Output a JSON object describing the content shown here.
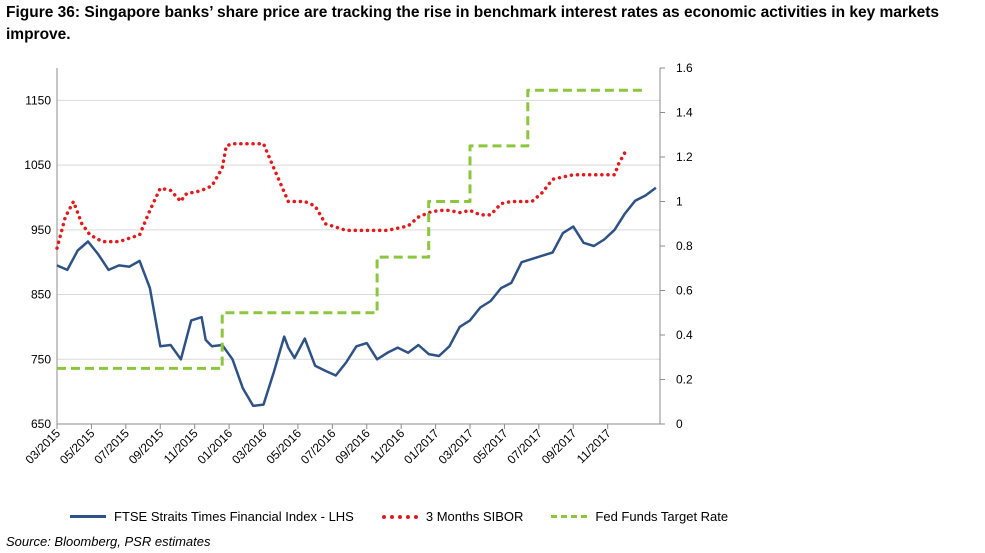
{
  "title": "Figure 36: Singapore banks’ share price are tracking the rise in benchmark interest rates as economic activities in key markets improve.",
  "source": "Source: Bloomberg, PSR estimates",
  "chart_data": {
    "type": "line",
    "x_axis": {
      "kind": "time",
      "range": [
        "2015-03",
        "2017-12"
      ],
      "tick_labels": [
        "03/2015",
        "05/2015",
        "07/2015",
        "09/2015",
        "11/2015",
        "01/2016",
        "03/2016",
        "05/2016",
        "07/2016",
        "09/2016",
        "11/2016",
        "01/2017",
        "03/2017",
        "05/2017",
        "07/2017",
        "09/2017",
        "11/2017"
      ],
      "label_rotation": -45
    },
    "y_left": {
      "ylim": [
        650,
        1200
      ],
      "tick_labels": [
        "650",
        "750",
        "850",
        "950",
        "1050",
        "1150"
      ]
    },
    "y_right": {
      "ylim": [
        0,
        1.6
      ],
      "tick_labels": [
        "0",
        "0.2",
        "0.4",
        "0.6",
        "0.8",
        "1",
        "1.2",
        "1.4",
        "1.6"
      ]
    },
    "grid": "horizontal",
    "legend_position": "bottom",
    "colors": {
      "ftse": "#2e5285",
      "sibor": "#e31a1c",
      "fed": "#8cc63f",
      "grid": "#d9d9d9",
      "axis": "#8c8c8c"
    },
    "series": [
      {
        "name": "FTSE Straits Times Financial Index - LHS",
        "axis": "left",
        "style": "solid",
        "x": [
          2015.0,
          2015.05,
          2015.1,
          2015.15,
          2015.2,
          2015.25,
          2015.3,
          2015.35,
          2015.4,
          2015.45,
          2015.5,
          2015.55,
          2015.6,
          2015.65,
          2015.7,
          2015.72,
          2015.75,
          2015.8,
          2015.85,
          2015.9,
          2015.95,
          2016.0,
          2016.05,
          2016.1,
          2016.12,
          2016.15,
          2016.2,
          2016.25,
          2016.3,
          2016.35,
          2016.4,
          2016.45,
          2016.5,
          2016.55,
          2016.6,
          2016.65,
          2016.7,
          2016.75,
          2016.8,
          2016.85,
          2016.9,
          2016.95,
          2017.0,
          2017.05,
          2017.1,
          2017.15,
          2017.2,
          2017.25,
          2017.3,
          2017.35,
          2017.4,
          2017.45,
          2017.5,
          2017.55,
          2017.6,
          2017.65,
          2017.7,
          2017.75,
          2017.8,
          2017.85,
          2017.9
        ],
        "values": [
          895,
          888,
          918,
          932,
          912,
          888,
          895,
          893,
          902,
          860,
          770,
          772,
          750,
          810,
          815,
          780,
          770,
          772,
          750,
          705,
          678,
          680,
          730,
          785,
          768,
          752,
          782,
          740,
          732,
          725,
          745,
          770,
          775,
          750,
          760,
          768,
          760,
          772,
          758,
          755,
          770,
          800,
          810,
          830,
          840,
          860,
          868,
          900,
          905,
          910,
          915,
          945,
          955,
          930,
          925,
          935,
          950,
          975,
          995,
          1003,
          1015
        ]
      },
      {
        "name": "3 Months SIBOR",
        "axis": "right",
        "style": "dotted",
        "x": [
          2015.0,
          2015.04,
          2015.08,
          2015.12,
          2015.16,
          2015.22,
          2015.3,
          2015.4,
          2015.45,
          2015.5,
          2015.55,
          2015.6,
          2015.62,
          2015.64,
          2015.66,
          2015.7,
          2015.75,
          2015.8,
          2015.82,
          2015.85,
          2015.88,
          2016.0,
          2016.05,
          2016.12,
          2016.15,
          2016.2,
          2016.25,
          2016.3,
          2016.4,
          2016.42,
          2016.45,
          2016.55,
          2016.6,
          2016.7,
          2016.75,
          2016.8,
          2016.85,
          2016.9,
          2016.95,
          2017.0,
          2017.05,
          2017.1,
          2017.12,
          2017.15,
          2017.2,
          2017.25,
          2017.3,
          2017.35,
          2017.4,
          2017.45,
          2017.5,
          2017.55,
          2017.6,
          2017.65,
          2017.7,
          2017.72,
          2017.75
        ],
        "values": [
          0.79,
          0.93,
          1.0,
          0.9,
          0.85,
          0.82,
          0.82,
          0.85,
          0.96,
          1.06,
          1.05,
          1.0,
          1.03,
          1.04,
          1.04,
          1.05,
          1.07,
          1.15,
          1.25,
          1.26,
          1.26,
          1.26,
          1.15,
          1.0,
          1.0,
          1.0,
          0.98,
          0.9,
          0.87,
          0.87,
          0.87,
          0.87,
          0.87,
          0.89,
          0.93,
          0.95,
          0.96,
          0.96,
          0.95,
          0.96,
          0.94,
          0.94,
          0.96,
          0.99,
          1.0,
          1.0,
          1.0,
          1.04,
          1.1,
          1.11,
          1.12,
          1.12,
          1.12,
          1.12,
          1.12,
          1.17,
          1.22
        ]
      },
      {
        "name": "Fed Funds Target Rate",
        "axis": "right",
        "style": "dashed",
        "x": [
          2015.0,
          2015.8,
          2015.8,
          2016.55,
          2016.55,
          2016.8,
          2016.8,
          2017.0,
          2017.0,
          2017.28,
          2017.28,
          2017.75,
          2017.75,
          2017.84
        ],
        "values": [
          0.25,
          0.25,
          0.5,
          0.5,
          0.75,
          0.75,
          1.0,
          1.0,
          1.25,
          1.25,
          1.5,
          1.5,
          1.5,
          1.5
        ]
      }
    ]
  }
}
